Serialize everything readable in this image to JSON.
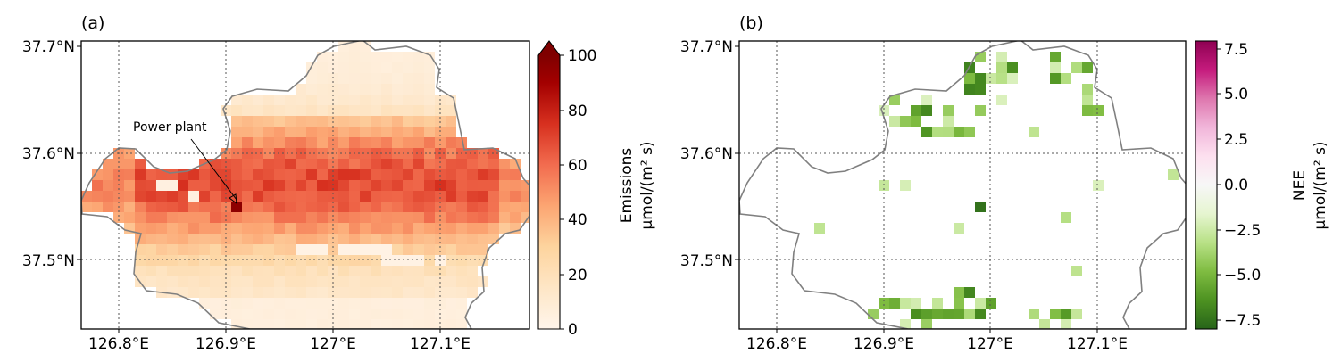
{
  "chart_data": [
    {
      "type": "heatmap",
      "panel_label": "(a)",
      "x_ticks": [
        "126.8°E",
        "126.9°E",
        "127°E",
        "127.1°E"
      ],
      "y_ticks": [
        "37.5°N",
        "37.6°N",
        "37.7°N"
      ],
      "xlim": [
        126.77,
        127.18
      ],
      "ylim": [
        37.43,
        37.7
      ],
      "grid": "dotted",
      "annotation": {
        "text": "Power plant",
        "point": [
          126.918,
          37.546
        ]
      },
      "colorbar": {
        "label_line1": "Emissions",
        "label_line2": "μmol/(m² s)",
        "range": [
          0,
          100
        ],
        "ticks": [
          "0",
          "20",
          "40",
          "60",
          "80",
          "100"
        ],
        "extend": "max",
        "colors": [
          "#fff5eb",
          "#fdd9a8",
          "#fca572",
          "#ef6548",
          "#d7301f",
          "#990000",
          "#7f0000"
        ]
      },
      "values_summary": "Emission flux ~10–60 μmol/(m² s) across Seoul; highest in central band (~55–65); peak ~100 at power plant (126.918°E, 37.546°N); lighter values at edges and along the Han River"
    },
    {
      "type": "heatmap",
      "panel_label": "(b)",
      "x_ticks": [
        "126.8°E",
        "126.9°E",
        "127°E",
        "127.1°E"
      ],
      "y_ticks": [
        "37.5°N",
        "37.6°N",
        "37.7°N"
      ],
      "xlim": [
        126.77,
        127.18
      ],
      "ylim": [
        37.43,
        37.7
      ],
      "grid": "dotted",
      "colorbar": {
        "label_line1": "NEE",
        "label_line2": "μmol/(m² s)",
        "range": [
          -8,
          8
        ],
        "ticks": [
          "7.5",
          "5.0",
          "2.5",
          "0.0",
          "−2.5",
          "−5.0",
          "−7.5"
        ],
        "tick_values": [
          7.5,
          5.0,
          2.5,
          0.0,
          -2.5,
          -5.0,
          -7.5
        ],
        "colors": [
          "#276419",
          "#4d9221",
          "#7fbc41",
          "#b8e186",
          "#e6f5d0",
          "#f7f7f7",
          "#fde0ef",
          "#f1b6da",
          "#de77ae",
          "#c51b7d",
          "#8e0152"
        ]
      },
      "values_summary": "NEE mostly ~0 (white) inside Seoul; negative values (green, down to ~−7.5) along northern mountains, southern mountains and scattered parks"
    }
  ]
}
